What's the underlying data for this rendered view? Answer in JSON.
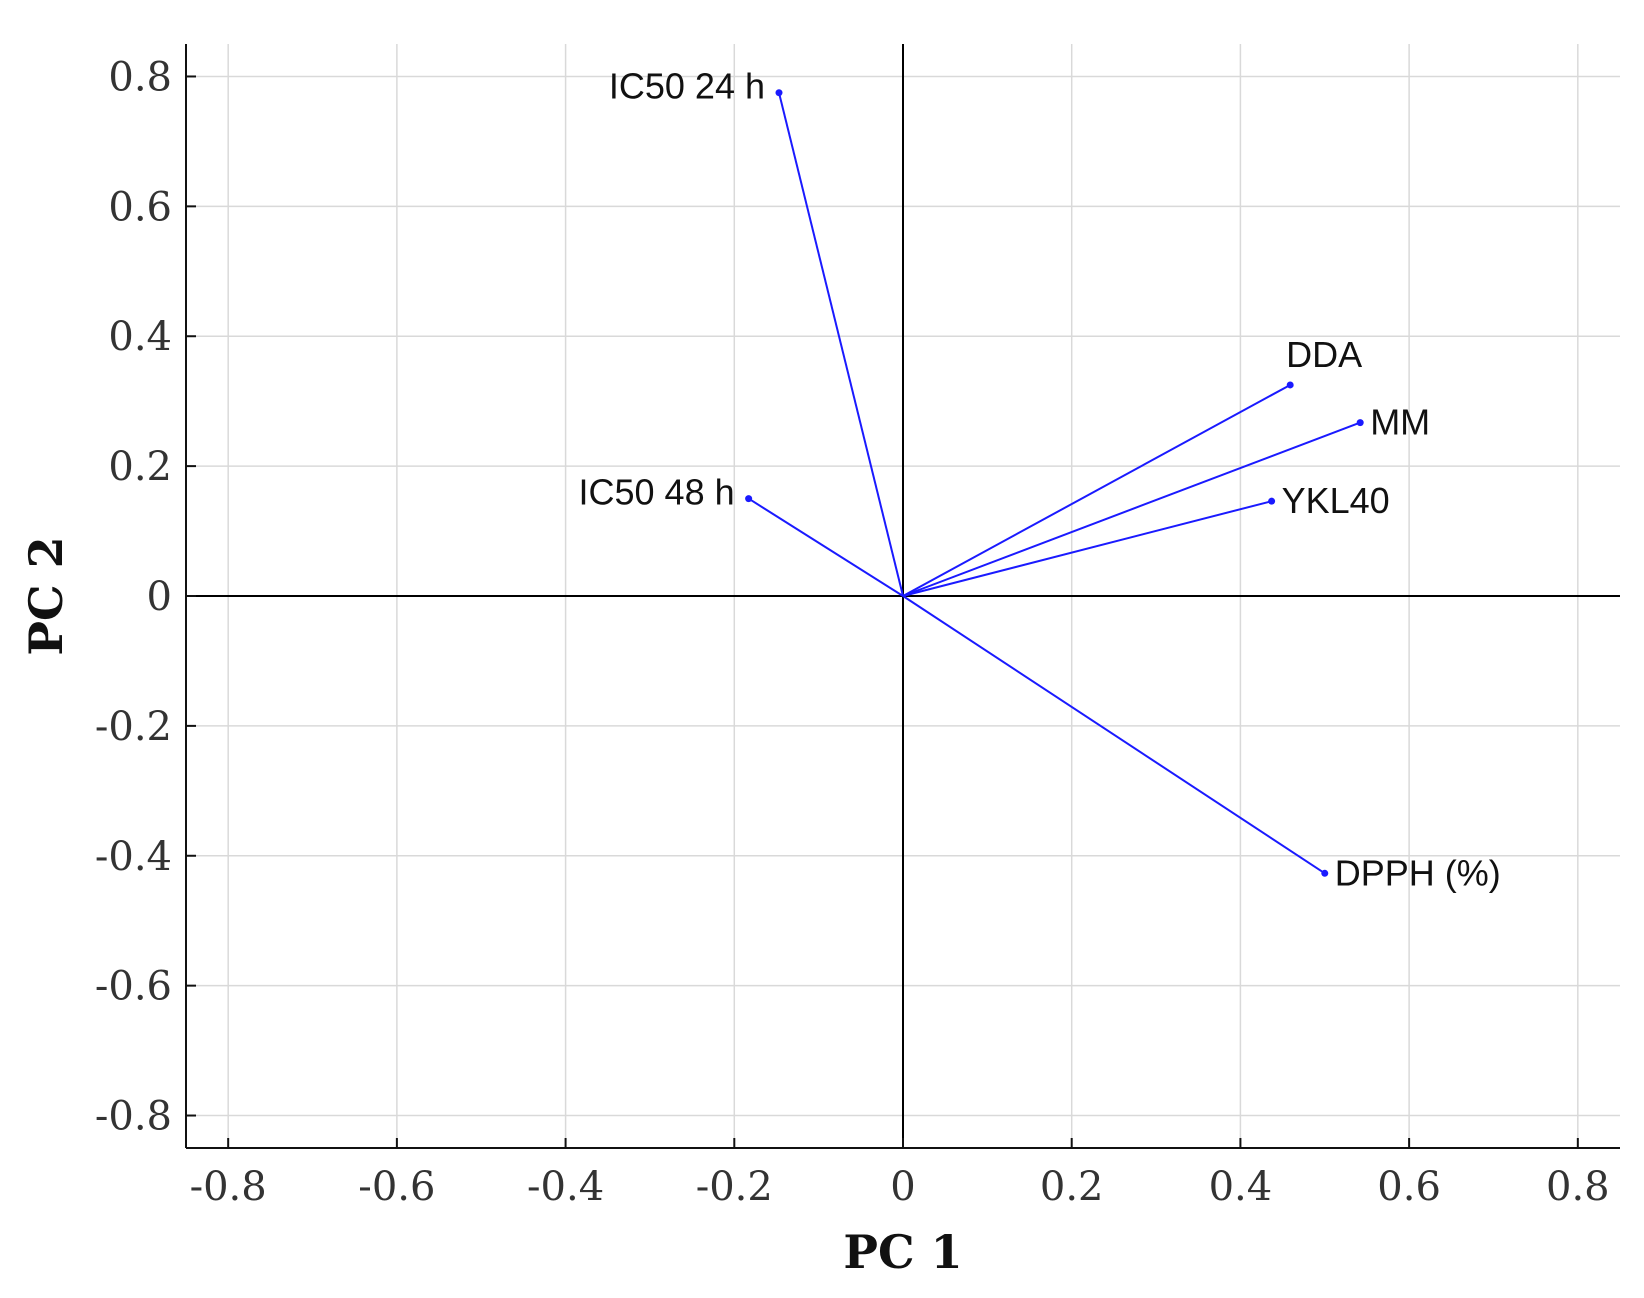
{
  "colors": {
    "vector": "#1a1aff",
    "grid": "#d9d9d9",
    "axis": "#111111",
    "zero_line": "#000000"
  },
  "chart_data": {
    "type": "biplot",
    "title": "",
    "xlabel": "PC 1",
    "ylabel": "PC 2",
    "xlim": [
      -0.85,
      0.85
    ],
    "ylim": [
      -0.85,
      0.85
    ],
    "grid": true,
    "xticks": [
      -0.8,
      -0.6,
      -0.4,
      -0.2,
      0,
      0.2,
      0.4,
      0.6,
      0.8
    ],
    "yticks": [
      -0.8,
      -0.6,
      -0.4,
      -0.2,
      0,
      0.2,
      0.4,
      0.6,
      0.8
    ],
    "xtick_labels": [
      "-0.8",
      "-0.6",
      "-0.4",
      "-0.2",
      "0",
      "0.2",
      "0.4",
      "0.6",
      "0.8"
    ],
    "ytick_labels": [
      "-0.8",
      "-0.6",
      "-0.4",
      "-0.2",
      "0",
      "0.2",
      "0.4",
      "0.6",
      "0.8"
    ],
    "vectors": [
      {
        "name": "IC50 24 h",
        "x": -0.147,
        "y": 0.775,
        "label_side": "left"
      },
      {
        "name": "IC50 48 h",
        "x": -0.183,
        "y": 0.15,
        "label_side": "left"
      },
      {
        "name": "DDA",
        "x": 0.459,
        "y": 0.325,
        "label_side": "above"
      },
      {
        "name": "MM",
        "x": 0.542,
        "y": 0.267,
        "label_side": "right"
      },
      {
        "name": "YKL40",
        "x": 0.437,
        "y": 0.146,
        "label_side": "right"
      },
      {
        "name": "DPPH (%)",
        "x": 0.5,
        "y": -0.427,
        "label_side": "right"
      }
    ]
  }
}
